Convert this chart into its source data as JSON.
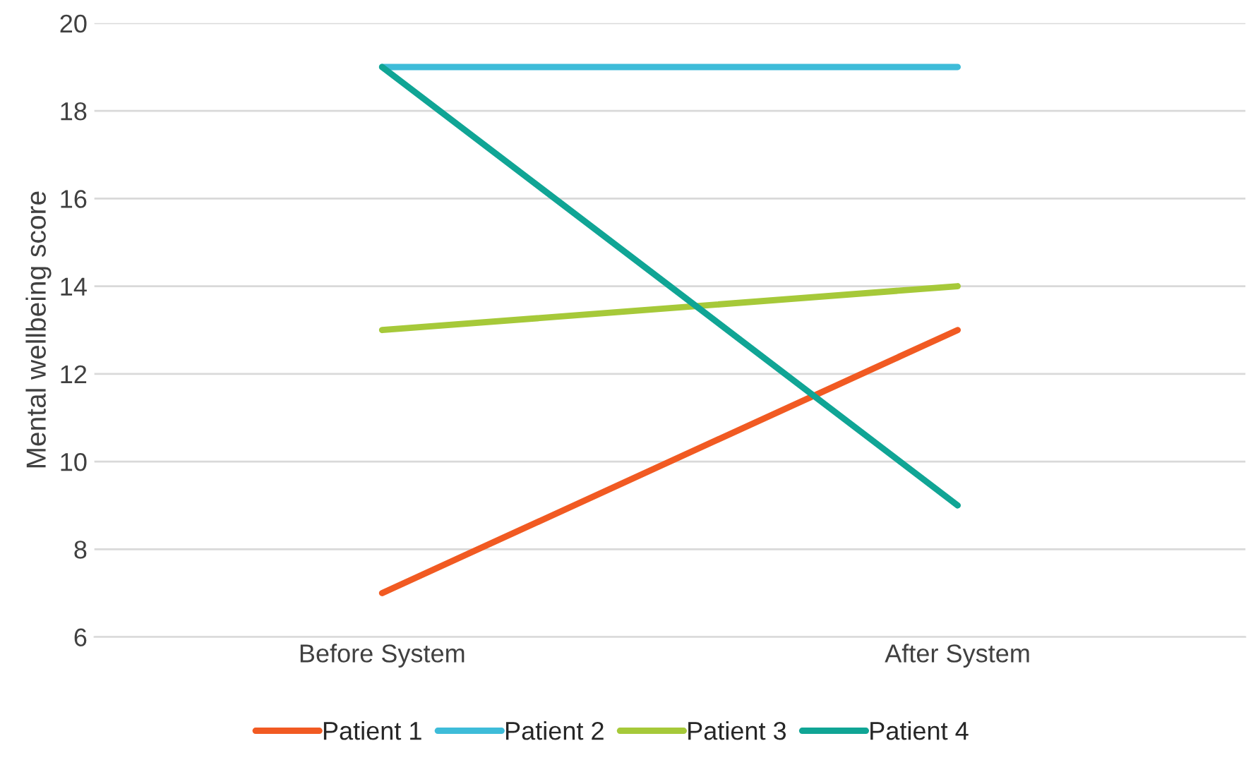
{
  "chart_data": {
    "type": "line",
    "ylabel": "Mental wellbeing score",
    "categories": [
      "Before System",
      "After System"
    ],
    "series": [
      {
        "name": "Patient 1",
        "color": "#f15a22",
        "values": [
          7,
          13
        ]
      },
      {
        "name": "Patient 2",
        "color": "#3ebcd9",
        "values": [
          19,
          19
        ]
      },
      {
        "name": "Patient 3",
        "color": "#a6c939",
        "values": [
          13,
          14
        ]
      },
      {
        "name": "Patient 4",
        "color": "#10a595",
        "values": [
          19,
          9
        ]
      }
    ],
    "ylim": [
      6,
      20
    ],
    "yticks": [
      6,
      8,
      10,
      12,
      14,
      16,
      18,
      20
    ],
    "grid": "y",
    "legend": "bottom",
    "marker": "none",
    "line_style": "solid"
  }
}
